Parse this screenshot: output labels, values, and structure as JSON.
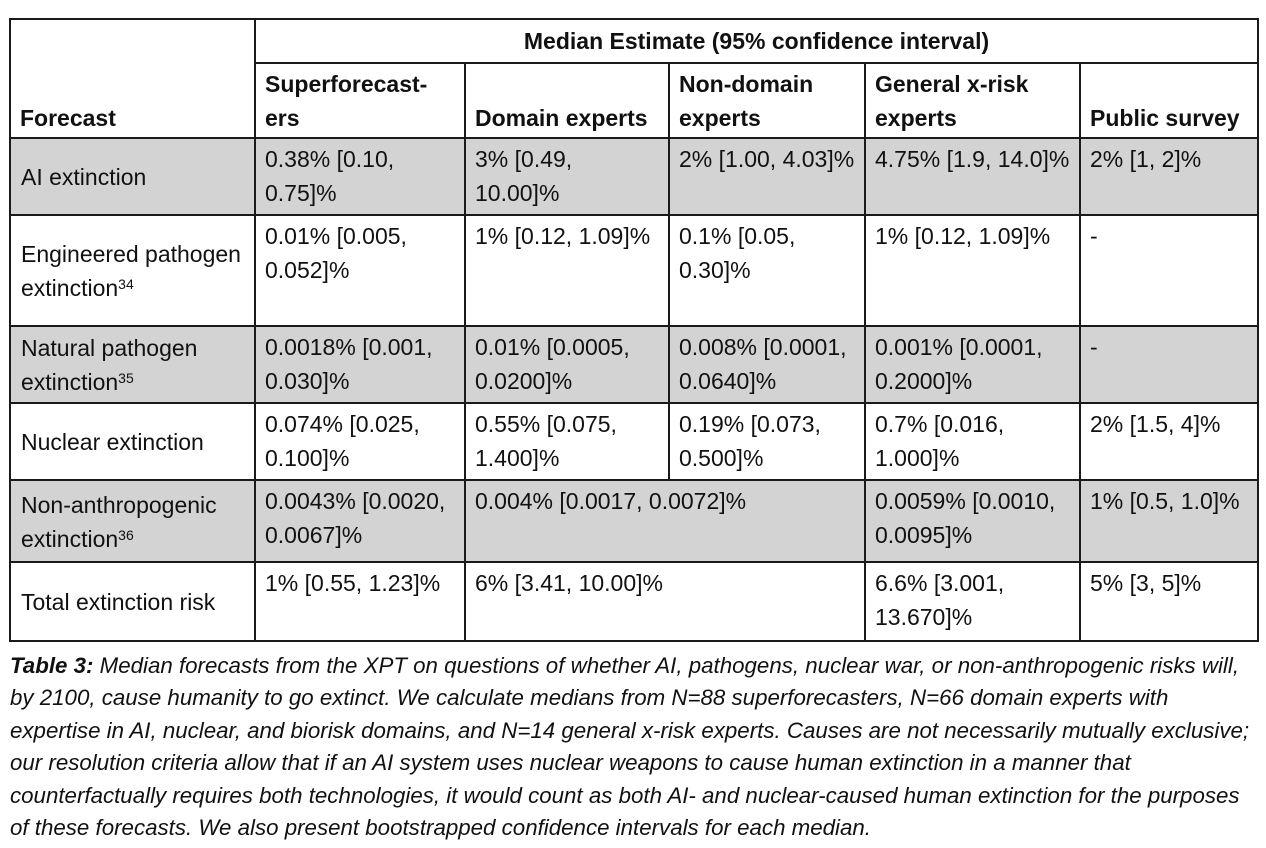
{
  "table": {
    "group_header": "Median Estimate (95% confidence interval)",
    "forecast_header": "Forecast",
    "columns": [
      "Superforecast-ers",
      "Domain experts",
      "Non-domain experts",
      "General x-risk experts",
      "Public survey"
    ],
    "rows": [
      {
        "label": "AI extinction",
        "sup": "",
        "superforecasters": "0.38% [0.10, 0.75]%",
        "domain_experts": "3% [0.49, 10.00]%",
        "non_domain_experts": "2% [1.00, 4.03]%",
        "general_xrisk": "4.75% [1.9, 14.0]%",
        "public_survey": "2% [1, 2]%"
      },
      {
        "label": "Engineered pathogen extinction",
        "sup": "34",
        "superforecasters": "0.01% [0.005, 0.052]%",
        "domain_experts": "1% [0.12, 1.09]%",
        "non_domain_experts": "0.1% [0.05, 0.30]%",
        "general_xrisk": "1% [0.12, 1.09]%",
        "public_survey": "-"
      },
      {
        "label": "Natural pathogen extinction",
        "sup": "35",
        "superforecasters": "0.0018% [0.001, 0.030]%",
        "domain_experts": "0.01% [0.0005, 0.0200]%",
        "non_domain_experts": "0.008% [0.0001, 0.0640]%",
        "general_xrisk": "0.001% [0.0001, 0.2000]%",
        "public_survey": "-"
      },
      {
        "label": "Nuclear extinction",
        "sup": "",
        "superforecasters": "0.074% [0.025, 0.100]%",
        "domain_experts": "0.55% [0.075, 1.400]%",
        "non_domain_experts": "0.19% [0.073, 0.500]%",
        "general_xrisk": "0.7% [0.016, 1.000]%",
        "public_survey": "2% [1.5, 4]%"
      },
      {
        "label": "Non-anthropogenic extinction",
        "sup": "36",
        "superforecasters": "0.0043% [0.0020, 0.0067]%",
        "domain_and_non_domain_experts": "0.004% [0.0017, 0.0072]%",
        "general_xrisk": "0.0059% [0.0010, 0.0095]%",
        "public_survey": "1% [0.5, 1.0]%"
      },
      {
        "label": "Total extinction risk",
        "sup": "",
        "superforecasters": "1% [0.55, 1.23]%",
        "domain_and_non_domain_experts": "6% [3.41, 10.00]%",
        "general_xrisk": "6.6% [3.001, 13.670]%",
        "public_survey": "5% [3, 5]%"
      }
    ]
  },
  "caption": {
    "label": "Table 3:",
    "text": "Median forecasts from the XPT on questions of whether AI, pathogens, nuclear war, or non-anthropogenic risks will, by 2100, cause humanity to go extinct. We calculate medians from N=88 superforecasters, N=66 domain experts with expertise in AI, nuclear, and biorisk domains, and N=14 general x-risk experts. Causes are not necessarily mutually exclusive; our resolution criteria allow that if an AI system uses nuclear weapons to cause human extinction in a manner that counterfactually requires both technologies, it would count as both AI- and nuclear-caused human extinction for the purposes of these forecasts. We also present bootstrapped confidence intervals for each median."
  },
  "colors": {
    "shaded_row": "#d3d3d3",
    "border": "#1a1a1a",
    "text": "#111111"
  }
}
